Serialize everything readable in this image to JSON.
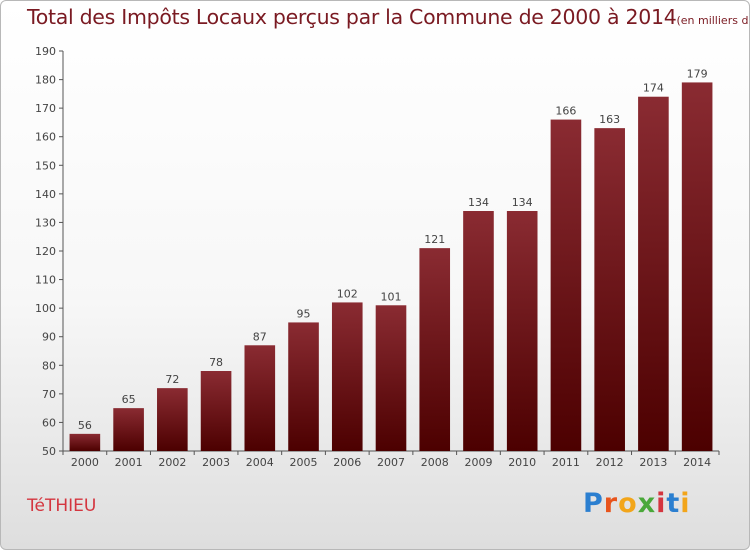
{
  "header": {
    "title": "Total des Impôts Locaux perçus par la Commune de 2000 à 2014",
    "unit_note": "(en milliers d'€)"
  },
  "footer": {
    "commune": "TéTHIEU",
    "logo_letters": [
      "P",
      "r",
      "o",
      "x",
      "i",
      "t",
      "i"
    ],
    "logo_colors": [
      "#2b7fd0",
      "#e8541c",
      "#f2a51a",
      "#4aa83a",
      "#d4353f",
      "#2b7fd0",
      "#f2a51a"
    ]
  },
  "colors": {
    "bar_light": "#8a2b32",
    "bar_dark": "#4c0000",
    "axis": "#555555",
    "text": "#444444"
  },
  "chart_data": {
    "type": "bar",
    "title": "Total des Impôts Locaux perçus par la Commune de 2000 à 2014",
    "xlabel": "",
    "ylabel": "en milliers d'€",
    "categories": [
      "2000",
      "2001",
      "2002",
      "2003",
      "2004",
      "2005",
      "2006",
      "2007",
      "2008",
      "2009",
      "2010",
      "2011",
      "2012",
      "2013",
      "2014"
    ],
    "values": [
      56,
      65,
      72,
      78,
      87,
      95,
      102,
      101,
      121,
      134,
      134,
      166,
      163,
      174,
      179
    ],
    "ylim": [
      50,
      190
    ],
    "yticks": [
      50,
      60,
      70,
      80,
      90,
      100,
      110,
      120,
      130,
      140,
      150,
      160,
      170,
      180,
      190
    ],
    "grid": false
  }
}
